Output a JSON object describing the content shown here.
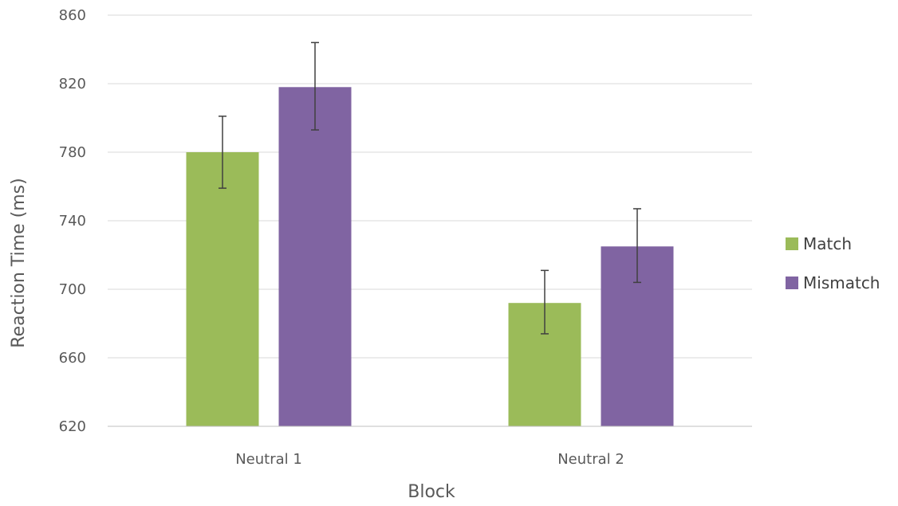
{
  "chart_data": {
    "type": "bar",
    "title": "",
    "xlabel": "Block",
    "ylabel": "Reaction Time (ms)",
    "categories": [
      "Neutral 1",
      "Neutral 2"
    ],
    "ylim": [
      620,
      860
    ],
    "yticks": [
      620,
      660,
      700,
      740,
      780,
      820,
      860
    ],
    "ytick_labels": [
      "620",
      "660",
      "700",
      "740",
      "780",
      "820",
      "860"
    ],
    "grid": true,
    "legend_position": "right",
    "series": [
      {
        "name": "Match",
        "color": "#9BBB59",
        "values": [
          780,
          692
        ],
        "error_low": [
          759,
          674
        ],
        "error_high": [
          801,
          711
        ]
      },
      {
        "name": "Mismatch",
        "color": "#8064A2",
        "values": [
          818,
          725
        ],
        "error_low": [
          793,
          704
        ],
        "error_high": [
          844,
          747
        ]
      }
    ],
    "colors": {
      "grid": "#D9D9D9",
      "axis": "#BFBFBF",
      "error_bar": "#404040"
    }
  }
}
